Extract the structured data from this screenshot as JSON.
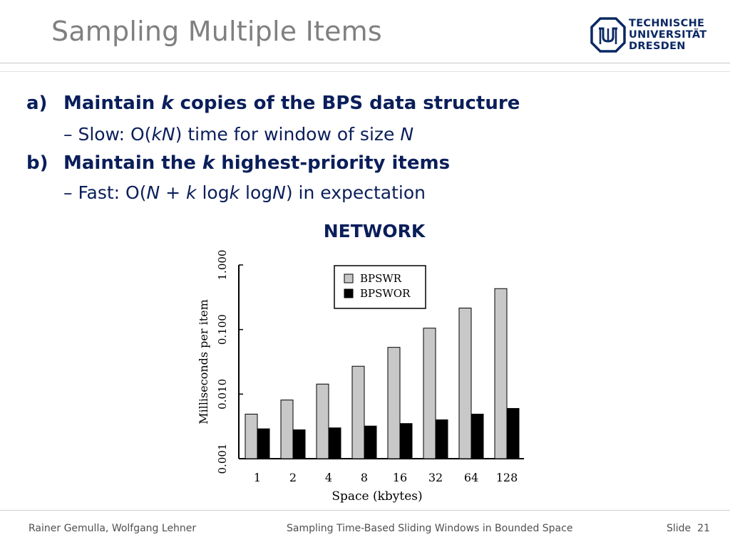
{
  "slide": {
    "title": "Sampling Multiple Items",
    "logo": {
      "lines": [
        "TECHNISCHE",
        "UNIVERSITÄT",
        "DRESDEN"
      ],
      "color": "#0a2864"
    },
    "bullets": [
      {
        "label": "a)",
        "parts": [
          "Maintain ",
          "k",
          " copies of the BPS data structure"
        ]
      },
      {
        "sub": [
          "– Slow: O(",
          "kN",
          ") time for window of size ",
          "N"
        ]
      },
      {
        "label": "b)",
        "parts": [
          "Maintain the ",
          "k",
          " highest-priority items"
        ]
      },
      {
        "sub": [
          "– Fast: O(",
          "N",
          " + ",
          "k",
          " log",
          "k",
          " log",
          "N",
          ") in expectation"
        ]
      }
    ],
    "chart_heading": "NETWORK",
    "footer": {
      "authors": "Rainer Gemulla, Wolfgang Lehner",
      "talk_title": "Sampling Time-Based Sliding Windows in Bounded Space",
      "slide_label": "Slide",
      "slide_number": "21"
    }
  },
  "chart_data": {
    "type": "bar",
    "title": "NETWORK",
    "xlabel": "Space (kbytes)",
    "ylabel": "Milliseconds per item",
    "yscale": "log",
    "ylim": [
      0.001,
      1.0
    ],
    "yticks": [
      "0.001",
      "0.010",
      "0.100",
      "1.000"
    ],
    "categories": [
      "1",
      "2",
      "4",
      "8",
      "16",
      "32",
      "64",
      "128"
    ],
    "legend_position": "top",
    "series": [
      {
        "name": "BPSWR",
        "color": "#c8c8c8",
        "values": [
          0.0049,
          0.0081,
          0.0143,
          0.027,
          0.053,
          0.105,
          0.215,
          0.43
        ]
      },
      {
        "name": "BPSWOR",
        "color": "#000000",
        "values": [
          0.0029,
          0.0028,
          0.003,
          0.0032,
          0.0035,
          0.004,
          0.0049,
          0.006
        ]
      }
    ]
  }
}
